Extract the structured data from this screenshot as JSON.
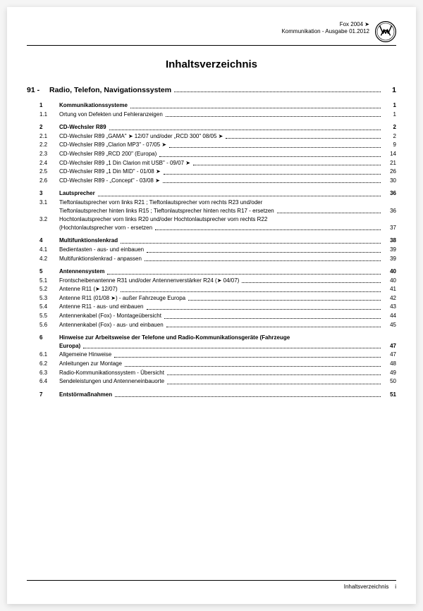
{
  "header": {
    "line1": "Fox 2004 ➤",
    "line2": "Kommunikation - Ausgabe 01.2012"
  },
  "title": "Inhaltsverzeichnis",
  "section": {
    "num": "91 -",
    "title": "Radio, Telefon, Navigationssystem",
    "page": "1"
  },
  "entries": [
    {
      "num": "1",
      "title": "Kommunikationssysteme",
      "page": "1",
      "bold": true
    },
    {
      "num": "1.1",
      "title": "Ortung von Defekten und Fehleranzeigen",
      "page": "1"
    },
    {
      "spacer": true
    },
    {
      "num": "2",
      "title": "CD-Wechsler R89",
      "page": "2",
      "bold": true
    },
    {
      "num": "2.1",
      "title": "CD-Wechsler R89 „GAMA\" ➤ 12/07 und/oder „RCD 300\" 08/05 ➤",
      "page": "2"
    },
    {
      "num": "2.2",
      "title": "CD-Wechsler R89 „Clarion MP3\" - 07/05 ➤",
      "page": "9"
    },
    {
      "num": "2.3",
      "title": "CD-Wechsler R89 „RCD 200\" (Europa)",
      "page": "14"
    },
    {
      "num": "2.4",
      "title": "CD-Wechsler R89 „1 Din Clarion mit USB\" - 09/07 ➤",
      "page": "21"
    },
    {
      "num": "2.5",
      "title": "CD-Wechsler R89 „1 Din MID\" - 01/08 ➤",
      "page": "26"
    },
    {
      "num": "2.6",
      "title": "CD-Wechsler R89 - „Concept\" - 03/08 ➤",
      "page": "30"
    },
    {
      "spacer": true
    },
    {
      "num": "3",
      "title": "Lautsprecher",
      "page": "36",
      "bold": true
    },
    {
      "num": "3.1",
      "multiline": true,
      "line1": "Tieftonlautsprecher vorn links R21 ; Tieftonlautsprecher vorn rechts R23 und/oder",
      "line2": "Tieftonlautsprecher hinten links R15 ; Tieftonlautsprecher hinten rechts R17 - ersetzen",
      "page": "36"
    },
    {
      "num": "3.2",
      "multiline": true,
      "line1": "Hochtonlautsprecher vorn links R20 und/oder Hochtonlautsprecher vorn rechts R22",
      "line2": "(Hochtonlautsprecher vorn - ersetzen",
      "page": "37"
    },
    {
      "spacer": true
    },
    {
      "num": "4",
      "title": "Multifunktionslenkrad",
      "page": "38",
      "bold": true
    },
    {
      "num": "4.1",
      "title": "Bedientasten - aus- und einbauen",
      "page": "39"
    },
    {
      "num": "4.2",
      "title": "Multifunktionslenkrad - anpassen",
      "page": "39"
    },
    {
      "spacer": true
    },
    {
      "num": "5",
      "title": "Antennensystem",
      "page": "40",
      "bold": true
    },
    {
      "num": "5.1",
      "title": "Frontscheibenantenne R31 und/oder Antennenverstärker R24 (➤ 04/07)",
      "page": "40"
    },
    {
      "num": "5.2",
      "title": "Antenne R11 (➤ 12/07)",
      "page": "41"
    },
    {
      "num": "5.3",
      "title": "Antenne R11 (01/08 ➤) - außer Fahrzeuge Europa",
      "page": "42"
    },
    {
      "num": "5.4",
      "title": "Antenne R11 - aus- und einbauen",
      "page": "43"
    },
    {
      "num": "5.5",
      "title": "Antennenkabel (Fox) - Montageübersicht",
      "page": "44"
    },
    {
      "num": "5.6",
      "title": "Antennenkabel (Fox) - aus- und einbauen",
      "page": "45"
    },
    {
      "spacer": true
    },
    {
      "num": "6",
      "bold": true,
      "multiline": true,
      "line1": "Hinweise zur Arbeitsweise der Telefone und Radio-Kommunikationsgeräte (Fahrzeuge",
      "line2": "Europa)",
      "page": "47"
    },
    {
      "num": "6.1",
      "title": "Allgemeine Hinweise",
      "page": "47"
    },
    {
      "num": "6.2",
      "title": "Anleitungen zur Montage",
      "page": "48"
    },
    {
      "num": "6.3",
      "title": "Radio-Kommunikationssystem - Übersicht",
      "page": "49"
    },
    {
      "num": "6.4",
      "title": "Sendeleistungen und Antenneneinbauorte",
      "page": "50"
    },
    {
      "spacer": true
    },
    {
      "num": "7",
      "title": "Entstörmaßnahmen",
      "page": "51",
      "bold": true
    }
  ],
  "footer": {
    "label": "Inhaltsverzeichnis",
    "page": "i"
  }
}
